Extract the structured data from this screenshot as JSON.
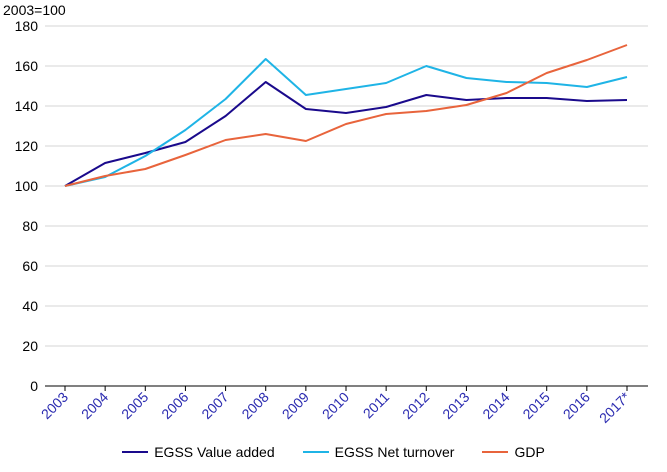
{
  "chart_data": {
    "type": "line",
    "unit_label": "2003=100",
    "categories": [
      "2003",
      "2004",
      "2005",
      "2006",
      "2007",
      "2008",
      "2009",
      "2010",
      "2011",
      "2012",
      "2013",
      "2014",
      "2015",
      "2016",
      "2017*"
    ],
    "ylim": [
      0,
      180
    ],
    "yticks": [
      0,
      20,
      40,
      60,
      80,
      100,
      120,
      140,
      160,
      180
    ],
    "grid": "horizontal",
    "legend_position": "bottom",
    "series": [
      {
        "name": "EGSS Value added",
        "color": "#1a0a8c",
        "values": [
          100,
          111.5,
          116.5,
          122,
          135,
          152,
          138.5,
          136.5,
          139.5,
          145.5,
          143,
          144,
          144,
          142.5,
          143
        ]
      },
      {
        "name": "EGSS Net turnover",
        "color": "#1fb4e6",
        "values": [
          100,
          104.5,
          115,
          128,
          143.5,
          163.5,
          145.5,
          148.5,
          151.5,
          160,
          154,
          152,
          151.5,
          149.5,
          154.5
        ]
      },
      {
        "name": "GDP",
        "color": "#e8643c",
        "values": [
          100,
          105,
          108.5,
          115.5,
          123,
          126,
          122.5,
          131,
          136,
          137.5,
          140.5,
          146.5,
          156.5,
          163,
          170.5
        ]
      }
    ]
  }
}
